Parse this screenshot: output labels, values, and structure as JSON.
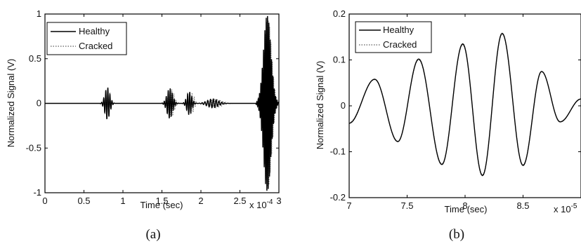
{
  "chart_data": [
    {
      "type": "line",
      "caption": "(a)",
      "xlabel": "Time (sec)",
      "ylabel": "Normalized Signal (V)",
      "x_multiplier": "x 10",
      "x_multiplier_exp": "-4",
      "xlim": [
        0,
        3
      ],
      "ylim": [
        -1,
        1
      ],
      "xticks": [
        "0",
        "0.5",
        "1",
        "1.5",
        "2",
        "2.5",
        "3"
      ],
      "yticks": [
        "-1",
        "-0.5",
        "0",
        "0.5",
        "1"
      ],
      "legend": {
        "position": "top-left",
        "entries": [
          "Healthy",
          "Cracked"
        ]
      },
      "series": [
        {
          "name": "Healthy",
          "color": "#000000",
          "dash": "solid",
          "packets": [
            {
              "center": 0.8,
              "width": 0.08,
              "amp": 0.18,
              "cycles": 6
            },
            {
              "center": 1.6,
              "width": 0.09,
              "amp": 0.17,
              "cycles": 7
            },
            {
              "center": 1.85,
              "width": 0.08,
              "amp": 0.13,
              "cycles": 6
            },
            {
              "center": 2.15,
              "width": 0.18,
              "amp": 0.05,
              "cycles": 10
            },
            {
              "center": 2.85,
              "width": 0.12,
              "amp": 1.0,
              "cycles": 14
            }
          ]
        },
        {
          "name": "Cracked",
          "color": "#777777",
          "dash": "dotted",
          "packets": [
            {
              "center": 0.8,
              "width": 0.08,
              "amp": 0.17,
              "cycles": 6
            },
            {
              "center": 1.62,
              "width": 0.09,
              "amp": 0.16,
              "cycles": 7
            },
            {
              "center": 1.88,
              "width": 0.08,
              "amp": 0.12,
              "cycles": 6
            },
            {
              "center": 2.2,
              "width": 0.18,
              "amp": 0.05,
              "cycles": 10
            },
            {
              "center": 2.86,
              "width": 0.12,
              "amp": 0.95,
              "cycles": 14
            }
          ]
        }
      ]
    },
    {
      "type": "line",
      "caption": "(b)",
      "xlabel": "Time (sec)",
      "ylabel": "Normalized Signal (V)",
      "x_multiplier": "x 10",
      "x_multiplier_exp": "-5",
      "xlim": [
        7,
        9
      ],
      "ylim": [
        -0.2,
        0.2
      ],
      "xticks": [
        "7",
        "7.5",
        "8",
        "8.5"
      ],
      "yticks": [
        "-0.2",
        "-0.1",
        "0",
        "0.1",
        "0.2"
      ],
      "legend": {
        "position": "top-left",
        "entries": [
          "Healthy",
          "Cracked"
        ]
      },
      "series": [
        {
          "name": "Healthy",
          "color": "#000000",
          "dash": "solid",
          "x": [
            7.0,
            7.22,
            7.42,
            7.6,
            7.8,
            7.98,
            8.15,
            8.32,
            8.5,
            8.66,
            8.82,
            9.0
          ],
          "y": [
            -0.038,
            0.058,
            -0.078,
            0.102,
            -0.128,
            0.135,
            -0.152,
            0.158,
            -0.13,
            0.075,
            -0.035,
            0.015
          ]
        },
        {
          "name": "Cracked",
          "color": "#777777",
          "dash": "dotted",
          "x": [
            7.0,
            7.22,
            7.42,
            7.6,
            7.8,
            7.98,
            8.15,
            8.32,
            8.5,
            8.66,
            8.82,
            9.0
          ],
          "y": [
            -0.036,
            0.057,
            -0.077,
            0.1,
            -0.126,
            0.133,
            -0.15,
            0.156,
            -0.128,
            0.074,
            -0.034,
            0.014
          ]
        }
      ]
    }
  ]
}
